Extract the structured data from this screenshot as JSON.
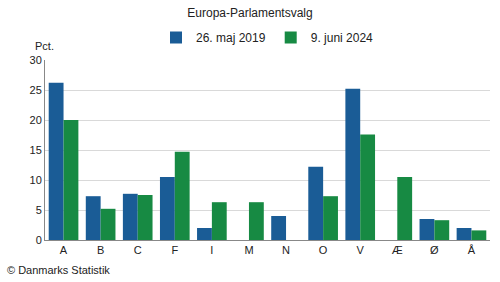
{
  "chart_data": {
    "type": "bar",
    "title": "Europa-Parlamentsvalg",
    "ylabel": "Pct.",
    "annotations": [
      "© Danmarks Statistik"
    ],
    "categories": [
      "A",
      "B",
      "C",
      "F",
      "I",
      "M",
      "N",
      "O",
      "V",
      "Æ",
      "Ø",
      "Å"
    ],
    "series": [
      {
        "name": "26. maj 2019",
        "color": "#1a5c96",
        "values": [
          26.2,
          7.3,
          7.7,
          10.5,
          2.0,
          null,
          4.0,
          12.2,
          25.2,
          null,
          3.5,
          2.0
        ]
      },
      {
        "name": "9. juni 2024",
        "color": "#178a43",
        "values": [
          20.0,
          5.2,
          7.5,
          14.7,
          6.3,
          6.3,
          null,
          7.3,
          17.6,
          10.5,
          3.3,
          1.6
        ]
      }
    ],
    "ylim": [
      0,
      30
    ],
    "yticks": [
      0,
      5,
      10,
      15,
      20,
      25,
      30
    ],
    "grid": true,
    "legend": "top"
  }
}
